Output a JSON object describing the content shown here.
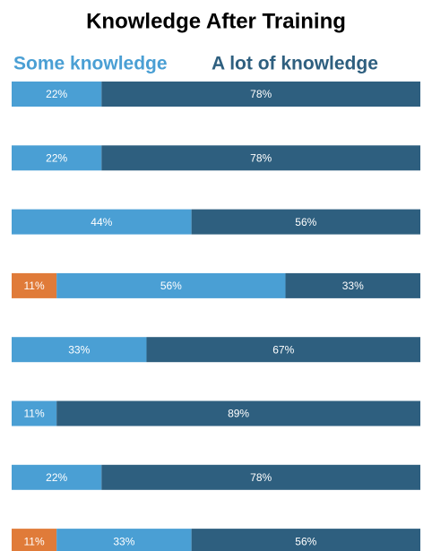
{
  "chart_data": {
    "type": "stacked-barh",
    "title": "Knowledge After Training",
    "xlim": [
      0,
      100
    ],
    "series": [
      {
        "color": "#e07b39",
        "values": [
          null,
          null,
          null,
          11,
          null,
          null,
          null,
          11
        ],
        "value_labels": [
          null,
          null,
          null,
          "11%",
          null,
          null,
          null,
          "11%"
        ]
      },
      {
        "name": "Some knowledge",
        "color": "#4a9fd4",
        "values": [
          22,
          22,
          44,
          56,
          33,
          11,
          22,
          33
        ],
        "value_labels": [
          "22%",
          "22%",
          "44%",
          "56%",
          "33%",
          "11%",
          "22%",
          "33%"
        ]
      },
      {
        "name": "A lot of knowledge",
        "color": "#2e5f7f",
        "values": [
          78,
          78,
          56,
          33,
          67,
          89,
          78,
          56
        ],
        "value_labels": [
          "78%",
          "78%",
          "56%",
          "33%",
          "67%",
          "89%",
          "78%",
          "56%"
        ]
      }
    ]
  }
}
